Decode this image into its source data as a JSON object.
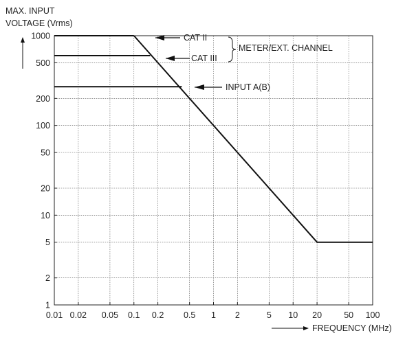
{
  "chart_data": {
    "type": "line",
    "ylabel": [
      "MAX. INPUT",
      "VOLTAGE (Vrms)"
    ],
    "xlabel": "FREQUENCY (MHz)",
    "x_scale": "log",
    "y_scale": "log",
    "xlim": [
      0.01,
      100
    ],
    "ylim": [
      1,
      1000
    ],
    "x_ticks": [
      "0.01",
      "0.02",
      "0.05",
      "0.1",
      "0.2",
      "0.5",
      "1",
      "2",
      "5",
      "10",
      "20",
      "50",
      "100"
    ],
    "y_ticks": [
      "1",
      "2",
      "5",
      "10",
      "20",
      "50",
      "100",
      "200",
      "500",
      "1000"
    ],
    "grid": true,
    "series": [
      {
        "name": "CAT II",
        "x": [
          0.01,
          0.1
        ],
        "y": [
          1000,
          1000
        ]
      },
      {
        "name": "CAT III",
        "x": [
          0.01,
          0.16
        ],
        "y": [
          600,
          600
        ]
      },
      {
        "name": "INPUT A(B)",
        "x": [
          0.01,
          0.4
        ],
        "y": [
          270,
          270
        ]
      },
      {
        "name": "",
        "x": [
          0.1,
          20,
          100
        ],
        "y": [
          1000,
          5,
          5
        ]
      }
    ],
    "annotations": {
      "cat_ii": "CAT II",
      "cat_iii": "CAT III",
      "input": "INPUT A(B)",
      "group": "METER/EXT. CHANNEL"
    }
  }
}
